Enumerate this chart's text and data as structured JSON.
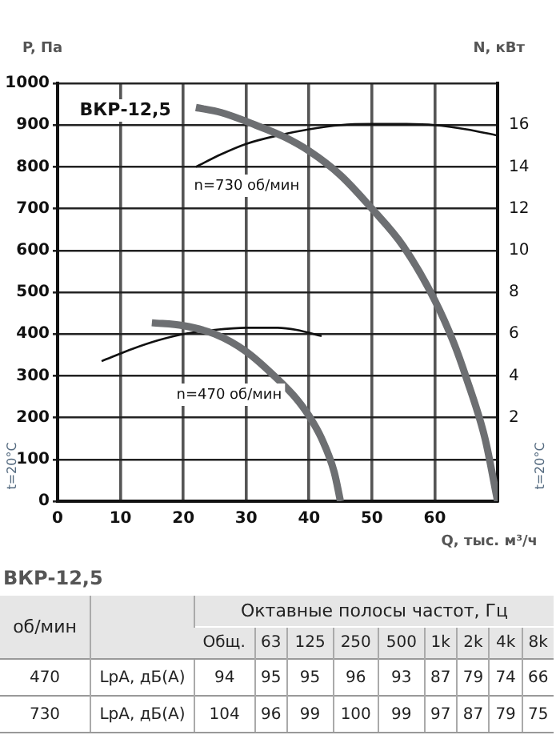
{
  "chart_data": {
    "type": "line",
    "xlabel": "Q, тыс. м³/ч",
    "ylabel": "P, Па",
    "y2label": "N, кВт",
    "xlim": [
      0,
      70
    ],
    "xticks": [
      0,
      10,
      20,
      30,
      40,
      50,
      60,
      {
        "value": 70,
        "label": null
      }
    ],
    "ylim": [
      0,
      1000
    ],
    "yticks": [
      0,
      100,
      200,
      300,
      400,
      500,
      600,
      700,
      800,
      900,
      1000
    ],
    "y2lim": [
      -2,
      18
    ],
    "y2ticks": [
      2,
      4,
      6,
      8,
      10,
      12,
      14,
      16
    ],
    "grid": true,
    "legend": false,
    "marker": "none",
    "line_style": "solid",
    "series": [
      {
        "color": "#6d6f72",
        "x": [
          22,
          26,
          31.5,
          36,
          40,
          45,
          50,
          55,
          60,
          63,
          65,
          68,
          70
        ],
        "values": [
          942,
          930,
          900,
          872,
          838,
          780,
          700,
          610,
          481,
          380,
          296,
          150,
          0
        ]
      },
      {
        "color": "#6d6f72",
        "x": [
          15,
          20,
          25,
          30,
          35,
          38,
          40,
          42,
          44,
          45
        ],
        "values": [
          427,
          420,
          400,
          358,
          292,
          245,
          204,
          150,
          70,
          0
        ]
      },
      {
        "color": "#111111",
        "axis": "y2",
        "x": [
          22,
          26,
          30,
          35,
          40,
          45,
          50,
          55,
          60,
          65,
          70
        ],
        "values": [
          14,
          14.6,
          15.1,
          15.5,
          15.8,
          16,
          16.05,
          16.05,
          16,
          15.8,
          15.5
        ]
      },
      {
        "color": "#111111",
        "axis": "y2",
        "x": [
          7,
          12,
          16,
          20,
          25,
          30,
          35,
          38,
          42
        ],
        "values": [
          4.7,
          5.3,
          5.7,
          6,
          6.2,
          6.3,
          6.3,
          6.2,
          5.9
        ]
      }
    ],
    "annotations": [
      "ВКР-12,5",
      "n=730 об/мин",
      "n=470 об/мин",
      "t=20°C",
      "t=20°C",
      "ВКР-12,5",
      "об/мин",
      "Октавные полосы частот, Гц",
      "Общ.",
      "63",
      "125",
      "250",
      "500",
      "1k",
      "2k",
      "4k",
      "8k",
      "470",
      "LpA, дБ(A)",
      "94",
      "95",
      "95",
      "96",
      "93",
      "87",
      "79",
      "74",
      "66",
      "730",
      "LpA, дБ(A)",
      "104",
      "96",
      "99",
      "100",
      "99",
      "97",
      "87",
      "79",
      "75"
    ]
  }
}
